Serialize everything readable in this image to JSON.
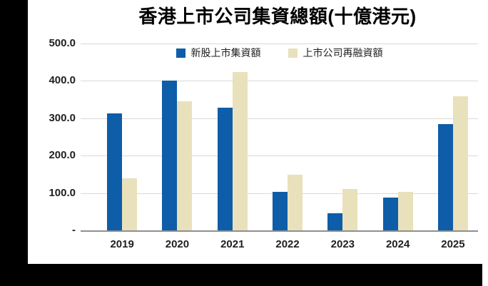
{
  "chart_data": {
    "type": "bar",
    "title": "香港上市公司集資總額(十億港元)",
    "categories": [
      "2019",
      "2020",
      "2021",
      "2022",
      "2023",
      "2024",
      "2025"
    ],
    "series": [
      {
        "name": "新股上市集資額",
        "color": "#0e5da9",
        "values": [
          313,
          400,
          329,
          104,
          46,
          87,
          285
        ]
      },
      {
        "name": "上市公司再融資額",
        "color": "#e9e1bb",
        "values": [
          139,
          346,
          424,
          148,
          110,
          104,
          358
        ]
      }
    ],
    "ylim": [
      0,
      500
    ],
    "yticks": [
      {
        "value": 500,
        "label": "500.0"
      },
      {
        "value": 400,
        "label": "400.0"
      },
      {
        "value": 300,
        "label": "300.0"
      },
      {
        "value": 200,
        "label": "200.0"
      },
      {
        "value": 100,
        "label": "100.0"
      },
      {
        "value": 0,
        "label": "-"
      }
    ],
    "grid": true,
    "legend_position": "top-center",
    "xlabel": "",
    "ylabel": ""
  },
  "frame": {
    "left_border_color": "#000000",
    "bottom_border_color": "#000000",
    "background_color": "#ffffff",
    "gridline_color": "#d9d9d9",
    "axis_color": "#8f8f8f"
  }
}
